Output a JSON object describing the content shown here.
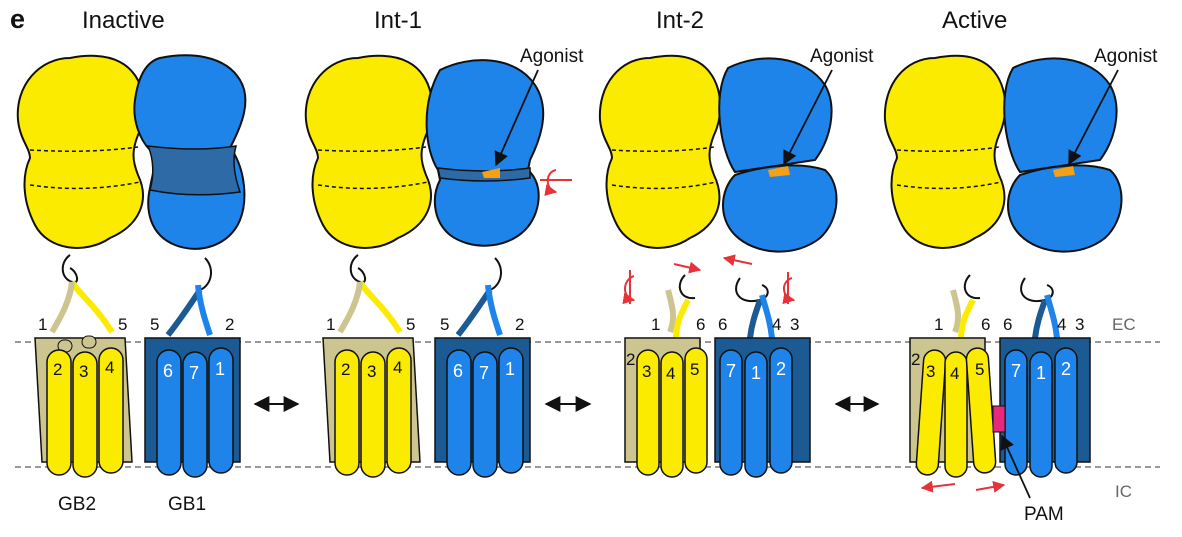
{
  "figure": {
    "panel_label": "e",
    "states": [
      {
        "title": "Inactive"
      },
      {
        "title": "Int-1",
        "agonist_label": "Agonist"
      },
      {
        "title": "Int-2",
        "agonist_label": "Agonist"
      },
      {
        "title": "Active",
        "agonist_label": "Agonist"
      }
    ],
    "membrane": {
      "extracellular": "EC",
      "intracellular": "IC"
    },
    "subunits": {
      "left": "GB2",
      "right": "GB1"
    },
    "pam_label": "PAM",
    "helix_labels": {
      "inactive_gb2_top": [
        "1",
        "5"
      ],
      "inactive_gb2_front": [
        "2",
        "3",
        "4"
      ],
      "inactive_gb1_top": [
        "5",
        "2"
      ],
      "inactive_gb1_front": [
        "6",
        "7",
        "1"
      ],
      "int2_top": [
        "1",
        "6",
        "6",
        "4",
        "3"
      ],
      "int2_gb2_front": [
        "2",
        "3",
        "4",
        "5"
      ],
      "int2_gb1_front": [
        "7",
        "1",
        "2"
      ]
    },
    "colors": {
      "gb2_vft": "#fbeb00",
      "gb2_tm_back": "#cdc590",
      "gb1_vft": "#1e84ea",
      "gb1_tm_back": "#1c5a94",
      "gb1_interface": "#2e6aa6",
      "agonist": "#f5a015",
      "pam": "#e6297a",
      "motion_arrows": "#e6333a",
      "membrane_line": "#777777"
    }
  }
}
